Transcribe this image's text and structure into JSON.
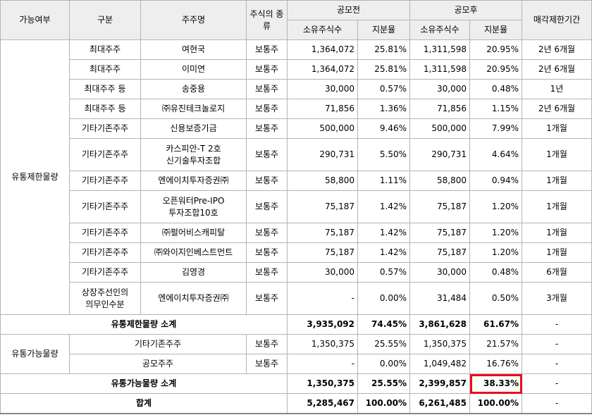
{
  "header": {
    "availability": "가능여부",
    "category": "구분",
    "shareholder": "주주명",
    "share_type": "주식의\n종류",
    "pre_ipo": "공모전",
    "post_ipo": "공모후",
    "shares": "소유주식수",
    "ratio": "지분율",
    "lockup": "매각제한기간"
  },
  "restricted_group_label": "유통제한물량",
  "restricted_rows": [
    {
      "category": "최대주주",
      "name": "여현국",
      "type": "보통주",
      "pre_shares": "1,364,072",
      "pre_ratio": "25.81%",
      "post_shares": "1,311,598",
      "post_ratio": "20.95%",
      "lockup": "2년 6개월"
    },
    {
      "category": "최대주주",
      "name": "이미연",
      "type": "보통주",
      "pre_shares": "1,364,072",
      "pre_ratio": "25.81%",
      "post_shares": "1,311,598",
      "post_ratio": "20.95%",
      "lockup": "2년 6개월"
    },
    {
      "category": "최대주주 등",
      "name": "송중용",
      "type": "보통주",
      "pre_shares": "30,000",
      "pre_ratio": "0.57%",
      "post_shares": "30,000",
      "post_ratio": "0.48%",
      "lockup": "1년"
    },
    {
      "category": "최대주주 등",
      "name": "㈜유진테크놀로지",
      "type": "보통주",
      "pre_shares": "71,856",
      "pre_ratio": "1.36%",
      "post_shares": "71,856",
      "post_ratio": "1.15%",
      "lockup": "2년 6개월"
    },
    {
      "category": "기타기존주주",
      "name": "신용보증기금",
      "type": "보통주",
      "pre_shares": "500,000",
      "pre_ratio": "9.46%",
      "post_shares": "500,000",
      "post_ratio": "7.99%",
      "lockup": "1개월"
    },
    {
      "category": "기타기존주주",
      "name": "카스피안-T 2호\n신기술투자조합",
      "type": "보통주",
      "pre_shares": "290,731",
      "pre_ratio": "5.50%",
      "post_shares": "290,731",
      "post_ratio": "4.64%",
      "lockup": "1개월"
    },
    {
      "category": "기타기존주주",
      "name": "엔에이치투자증권㈜",
      "type": "보통주",
      "pre_shares": "58,800",
      "pre_ratio": "1.11%",
      "post_shares": "58,800",
      "post_ratio": "0.94%",
      "lockup": "1개월"
    },
    {
      "category": "기타기존주주",
      "name": "오픈워터Pre-IPO\n투자조합10호",
      "type": "보통주",
      "pre_shares": "75,187",
      "pre_ratio": "1.42%",
      "post_shares": "75,187",
      "post_ratio": "1.20%",
      "lockup": "1개월"
    },
    {
      "category": "기타기존주주",
      "name": "㈜펄어비스캐피탈",
      "type": "보통주",
      "pre_shares": "75,187",
      "pre_ratio": "1.42%",
      "post_shares": "75,187",
      "post_ratio": "1.20%",
      "lockup": "1개월"
    },
    {
      "category": "기타기존주주",
      "name": "㈜와이지인베스트먼트",
      "type": "보통주",
      "pre_shares": "75,187",
      "pre_ratio": "1.42%",
      "post_shares": "75,187",
      "post_ratio": "1.20%",
      "lockup": "1개월"
    },
    {
      "category": "기타기존주주",
      "name": "김영경",
      "type": "보통주",
      "pre_shares": "30,000",
      "pre_ratio": "0.57%",
      "post_shares": "30,000",
      "post_ratio": "0.48%",
      "lockup": "6개월"
    },
    {
      "category": "상장주선인의\n의무인수분",
      "name": "엔에이치투자증권㈜",
      "type": "보통주",
      "pre_shares": "-",
      "pre_ratio": "0.00%",
      "post_shares": "31,484",
      "post_ratio": "0.50%",
      "lockup": "3개월"
    }
  ],
  "restricted_subtotal": {
    "label": "유통제한물량 소계",
    "pre_shares": "3,935,092",
    "pre_ratio": "74.45%",
    "post_shares": "3,861,628",
    "post_ratio": "61.67%",
    "lockup": "-"
  },
  "tradable_group_label": "유통가능물량",
  "tradable_rows": [
    {
      "name": "기타기존주주",
      "type": "보통주",
      "pre_shares": "1,350,375",
      "pre_ratio": "25.55%",
      "post_shares": "1,350,375",
      "post_ratio": "21.57%",
      "lockup": "-"
    },
    {
      "name": "공모주주",
      "type": "보통주",
      "pre_shares": "-",
      "pre_ratio": "0.00%",
      "post_shares": "1,049,482",
      "post_ratio": "16.76%",
      "lockup": "-"
    }
  ],
  "tradable_subtotal": {
    "label": "유통가능물량 소계",
    "pre_shares": "1,350,375",
    "pre_ratio": "25.55%",
    "post_shares": "2,399,857",
    "post_ratio": "38.33%",
    "lockup": "-"
  },
  "total": {
    "label": "합계",
    "pre_shares": "5,285,467",
    "pre_ratio": "100.00%",
    "post_shares": "6,261,485",
    "post_ratio": "100.00%",
    "lockup": "-"
  },
  "highlight_color": "#e8101a"
}
